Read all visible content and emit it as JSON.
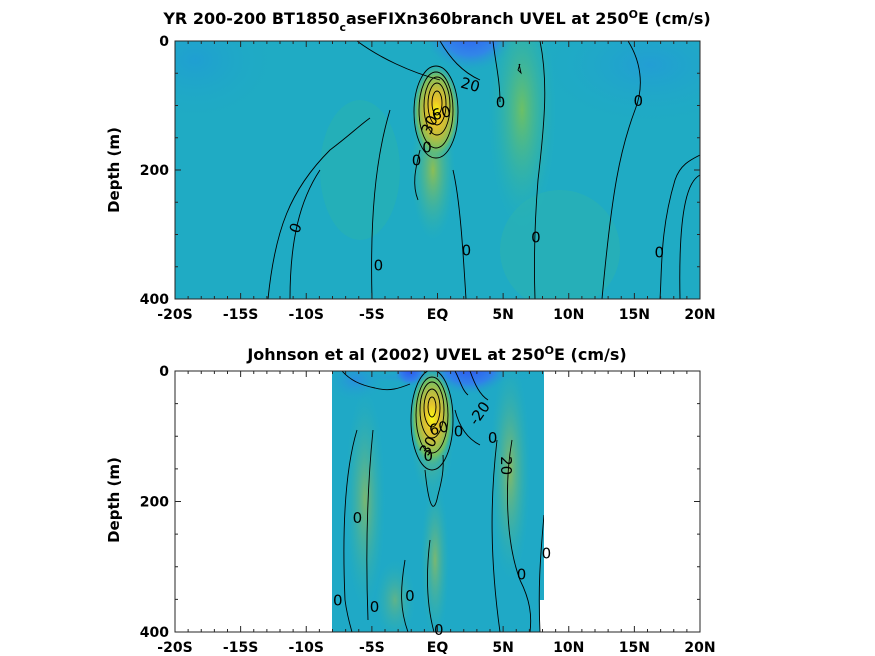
{
  "chart_data": [
    {
      "type": "heatmap",
      "title": {
        "main": "YR 200-200 BT1850",
        "sub": "c",
        "tail": "aseFIXn360branch UVEL at 250",
        "sup": "O",
        "end": "E (cm/s)"
      },
      "ylabel": "Depth (m)",
      "xlim": [
        -20,
        20
      ],
      "ylim": [
        0,
        400
      ],
      "x_ticks": [
        -20,
        -15,
        -10,
        -5,
        0,
        5,
        10,
        15,
        20
      ],
      "x_tick_labels": [
        "-20S",
        "-15S",
        "-10S",
        "-5S",
        "EQ",
        "5N",
        "10N",
        "15N",
        "20N"
      ],
      "y_ticks": [
        0,
        200,
        400
      ],
      "y_tick_labels": [
        "0",
        "200",
        "400"
      ],
      "data_extent": [
        -20,
        20
      ],
      "colormap": "parula",
      "jet_core": {
        "lat": 0.2,
        "depth": 100,
        "max_speed": 90
      },
      "contour_labels": [
        {
          "text": "20",
          "lat": 2.5,
          "depth": 68,
          "angle": 15
        },
        {
          "text": "0",
          "lat": 4.8,
          "depth": 95,
          "angle": 0
        },
        {
          "text": "0",
          "lat": 15.3,
          "depth": 93,
          "angle": 0
        },
        {
          "text": "60",
          "lat": 0.3,
          "depth": 112,
          "angle": -15
        },
        {
          "text": "30",
          "lat": -0.6,
          "depth": 130,
          "angle": -65
        },
        {
          "text": "0",
          "lat": -0.8,
          "depth": 165,
          "angle": 0
        },
        {
          "text": "0",
          "lat": -1.6,
          "depth": 185,
          "angle": 0
        },
        {
          "text": "0",
          "lat": -10.8,
          "depth": 290,
          "angle": -70
        },
        {
          "text": "0",
          "lat": 2.2,
          "depth": 325,
          "angle": 0
        },
        {
          "text": "0",
          "lat": 7.5,
          "depth": 305,
          "angle": 0
        },
        {
          "text": "0",
          "lat": 16.9,
          "depth": 328,
          "angle": 0
        },
        {
          "text": "0",
          "lat": -4.5,
          "depth": 348,
          "angle": 0
        }
      ]
    },
    {
      "type": "heatmap",
      "title": {
        "main": "Johnson et al (2002) UVEL at 250",
        "sub": "",
        "tail": "",
        "sup": "O",
        "end": "E (cm/s)"
      },
      "ylabel": "Depth (m)",
      "xlim": [
        -20,
        20
      ],
      "ylim": [
        0,
        400
      ],
      "x_ticks": [
        -20,
        -15,
        -10,
        -5,
        0,
        5,
        10,
        15,
        20
      ],
      "x_tick_labels": [
        "-20S",
        "-15S",
        "-10S",
        "-5S",
        "EQ",
        "5N",
        "10N",
        "15N",
        "20N"
      ],
      "y_ticks": [
        0,
        200,
        400
      ],
      "y_tick_labels": [
        "0",
        "200",
        "400"
      ],
      "data_extent": [
        -8,
        8.3
      ],
      "colormap": "parula",
      "jet_core": {
        "lat": 0,
        "depth": 70,
        "max_speed": 100
      },
      "contour_labels": [
        {
          "text": "-20",
          "lat": 3.2,
          "depth": 65,
          "angle": -55
        },
        {
          "text": "0",
          "lat": 1.6,
          "depth": 93,
          "angle": 0
        },
        {
          "text": "0",
          "lat": 4.2,
          "depth": 103,
          "angle": 0
        },
        {
          "text": "60",
          "lat": 0.1,
          "depth": 88,
          "angle": -15
        },
        {
          "text": "30",
          "lat": -0.7,
          "depth": 115,
          "angle": -60
        },
        {
          "text": "0",
          "lat": -0.7,
          "depth": 130,
          "angle": 0
        },
        {
          "text": "20",
          "lat": 5.2,
          "depth": 145,
          "angle": 90
        },
        {
          "text": "0",
          "lat": -6.1,
          "depth": 225,
          "angle": 0
        },
        {
          "text": "0",
          "lat": 8.3,
          "depth": 280,
          "angle": 0
        },
        {
          "text": "0",
          "lat": 6.4,
          "depth": 312,
          "angle": 0
        },
        {
          "text": "0",
          "lat": -2.1,
          "depth": 345,
          "angle": 0
        },
        {
          "text": "0",
          "lat": -7.6,
          "depth": 352,
          "angle": 0
        },
        {
          "text": "0",
          "lat": -4.8,
          "depth": 362,
          "angle": 0
        },
        {
          "text": "0",
          "lat": 0.1,
          "depth": 397,
          "angle": 0
        }
      ]
    }
  ]
}
